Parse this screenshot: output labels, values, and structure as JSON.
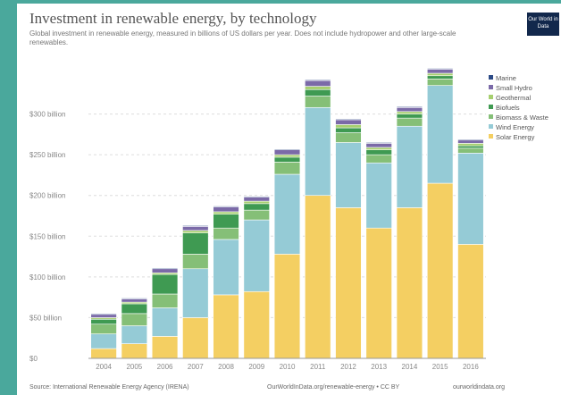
{
  "header": {
    "title": "Investment in renewable energy, by technology",
    "subtitle": "Global investment in renewable energy, measured in billions of US dollars per year. Does not include hydropower and other large-scale renewables.",
    "logo_text": "Our World in Data"
  },
  "footer": {
    "source": "Source: International Renewable Energy Agency (IRENA)",
    "license": "OurWorldInData.org/renewable-energy • CC BY",
    "url": "ourworldindata.org"
  },
  "chart_data": {
    "type": "bar",
    "stacked": true,
    "categories": [
      "2004",
      "2005",
      "2006",
      "2007",
      "2008",
      "2009",
      "2010",
      "2011",
      "2012",
      "2013",
      "2014",
      "2015",
      "2016"
    ],
    "ylim": [
      0,
      350
    ],
    "yticks": [
      0,
      50,
      100,
      150,
      200,
      250,
      300
    ],
    "ytick_labels": [
      "$0",
      "$50 billion",
      "$100 billion",
      "$150 billion",
      "$200 billion",
      "$250 billion",
      "$300 billion"
    ],
    "legend_position": "right",
    "series": [
      {
        "name": "Solar Energy",
        "color": "#f4cf62",
        "values": [
          12,
          18,
          27,
          50,
          78,
          82,
          128,
          200,
          185,
          160,
          185,
          215,
          140
        ]
      },
      {
        "name": "Wind Energy",
        "color": "#95cbd6",
        "values": [
          18,
          22,
          35,
          60,
          68,
          88,
          98,
          108,
          80,
          80,
          100,
          120,
          112
        ]
      },
      {
        "name": "Biomass & Waste",
        "color": "#85bf77",
        "values": [
          12,
          15,
          17,
          18,
          14,
          12,
          15,
          14,
          12,
          10,
          10,
          8,
          6
        ]
      },
      {
        "name": "Biofuels",
        "color": "#3f9a52",
        "values": [
          6,
          12,
          24,
          26,
          17,
          8,
          6,
          8,
          6,
          6,
          5,
          4,
          3
        ]
      },
      {
        "name": "Geothermal",
        "color": "#a6cf6f",
        "values": [
          2,
          2,
          2,
          3,
          3,
          3,
          3,
          4,
          4,
          3,
          3,
          3,
          3
        ]
      },
      {
        "name": "Small Hydro",
        "color": "#7b6aa8",
        "values": [
          4,
          4,
          5,
          5,
          6,
          5,
          6,
          7,
          6,
          5,
          5,
          5,
          4
        ]
      },
      {
        "name": "Marine",
        "color": "#2c4a86",
        "values": [
          1,
          1,
          1,
          1,
          1,
          1,
          1,
          1,
          1,
          1,
          1,
          1,
          1
        ]
      }
    ]
  }
}
